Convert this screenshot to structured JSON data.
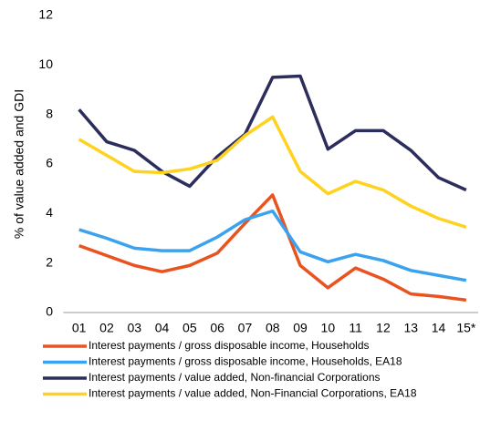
{
  "chart_data": {
    "type": "line",
    "y_label": "% of value added and GDI",
    "categories": [
      "01",
      "02",
      "03",
      "04",
      "05",
      "06",
      "07",
      "08",
      "09",
      "10",
      "11",
      "12",
      "13",
      "14",
      "15*"
    ],
    "series": [
      {
        "name": "Interest payments / gross disposable income, Households",
        "color": "#e8531f",
        "values": [
          2.7,
          2.3,
          1.9,
          1.65,
          1.9,
          2.4,
          3.6,
          4.75,
          1.9,
          1.0,
          1.8,
          1.35,
          0.75,
          0.65,
          0.5
        ]
      },
      {
        "name": "Interest payments / gross disposable income, Households, EA18",
        "color": "#3ba2f0",
        "values": [
          3.35,
          3.0,
          2.6,
          2.5,
          2.5,
          3.05,
          3.75,
          4.1,
          2.45,
          2.05,
          2.35,
          2.1,
          1.7,
          1.5,
          1.3
        ]
      },
      {
        "name": "Interest payments / value added, Non-financial Corporations",
        "color": "#2b2d5c",
        "values": [
          8.2,
          6.9,
          6.55,
          5.7,
          5.1,
          6.3,
          7.2,
          9.5,
          9.55,
          6.6,
          7.35,
          7.35,
          6.55,
          5.45,
          4.95
        ]
      },
      {
        "name": "Interest payments / value added, Non-Financial Corporations, EA18",
        "color": "#ffd21f",
        "values": [
          7.0,
          6.35,
          5.7,
          5.65,
          5.8,
          6.15,
          7.15,
          7.9,
          5.7,
          4.8,
          5.3,
          4.95,
          4.3,
          3.8,
          3.45
        ]
      }
    ],
    "ylim": [
      0,
      12
    ],
    "yticks": [
      0,
      2,
      4,
      6,
      8,
      10,
      12
    ],
    "grid": false,
    "legend": "bottom"
  }
}
